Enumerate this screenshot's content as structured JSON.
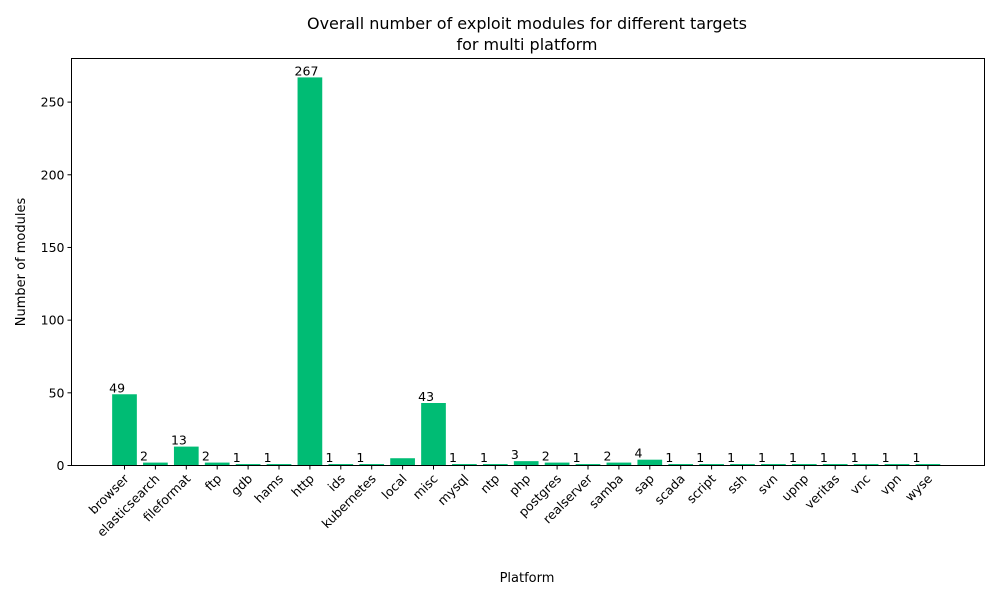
{
  "chart_data": {
    "type": "bar",
    "title": "Overall number of exploit modules for different targets",
    "subtitle": "for multi platform",
    "xlabel": "Platform",
    "ylabel": "Number of modules",
    "ylim": [
      0,
      280
    ],
    "yticks": [
      0,
      50,
      100,
      150,
      200,
      250
    ],
    "grid": false,
    "bar_color": "#00bc74",
    "categories": [
      "browser",
      "elasticsearch",
      "fileformat",
      "ftp",
      "gdb",
      "hams",
      "http",
      "ids",
      "kubernetes",
      "local",
      "misc",
      "mysql",
      "ntp",
      "php",
      "postgres",
      "realserver",
      "samba",
      "sap",
      "scada",
      "script",
      "ssh",
      "svn",
      "upnp",
      "veritas",
      "vnc",
      "vpn",
      "wyse"
    ],
    "values": [
      49,
      2,
      13,
      2,
      1,
      1,
      267,
      1,
      1,
      5,
      43,
      1,
      1,
      3,
      2,
      1,
      2,
      4,
      1,
      1,
      1,
      1,
      1,
      1,
      1,
      1,
      1
    ],
    "data_labels": [
      "49",
      "2",
      "13",
      "2",
      "1",
      "1",
      "267",
      "1",
      "1",
      "",
      "43",
      "1",
      "1",
      "3",
      "2",
      "1",
      "2",
      "4",
      "1",
      "1",
      "1",
      "1",
      "1",
      "1",
      "1",
      "1",
      "1"
    ],
    "x_tick_labels": [
      "browser",
      "elasticsearch",
      "fileformat",
      "ftp",
      "gdb",
      "hams",
      "http",
      "ids",
      "kubernetes",
      "local",
      "misc",
      "mysql",
      "ntp",
      "php",
      "postgres",
      "realserver",
      "samba",
      "sap",
      "scada",
      "script",
      "ssh",
      "svn",
      "upnp",
      "veritas",
      "vnc",
      "vpn",
      "wyse"
    ]
  }
}
